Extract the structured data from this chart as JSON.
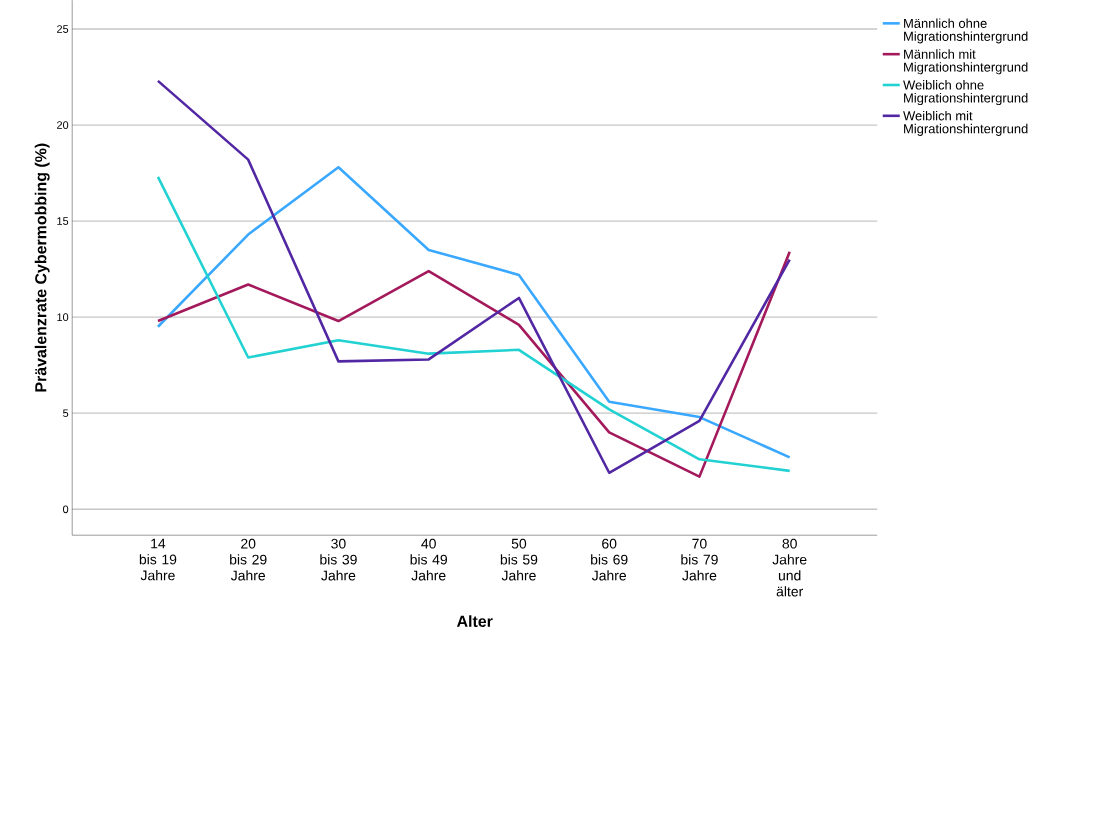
{
  "chart_data": {
    "type": "line",
    "xlabel": "Alter",
    "ylabel": "Prävalenzrate Cybermobbing (%)",
    "categories": [
      "14 bis 19 Jahre",
      "20 bis 29 Jahre",
      "30 bis 39 Jahre",
      "40 bis 49 Jahre",
      "50 bis 59 Jahre",
      "60 bis 69 Jahre",
      "70 bis 79 Jahre",
      "80 Jahre und älter"
    ],
    "series": [
      {
        "name": "Männlich ohne Migrationshintergrund",
        "color": "#3aa8ff",
        "values": [
          9.5,
          14.3,
          17.8,
          13.5,
          12.2,
          5.6,
          4.8,
          2.7
        ]
      },
      {
        "name": "Männlich mit Migrationshintergrund",
        "color": "#a3195b",
        "values": [
          9.8,
          11.7,
          9.8,
          12.4,
          9.6,
          4.0,
          1.7,
          13.4
        ]
      },
      {
        "name": "Weiblich ohne Migrationshintergrund",
        "color": "#22d1d1",
        "values": [
          17.3,
          7.9,
          8.8,
          8.1,
          8.3,
          5.2,
          2.6,
          2.0
        ]
      },
      {
        "name": "Weiblich mit Migrationshintergrund",
        "color": "#5227a3",
        "values": [
          22.3,
          18.2,
          7.7,
          7.8,
          11.0,
          1.9,
          4.6,
          13.0
        ]
      }
    ],
    "ylim": [
      -1.35,
      26.5
    ],
    "yticks": [
      0,
      5,
      10,
      15,
      20,
      25
    ],
    "grid": "y",
    "legend": "top right",
    "marker": "none",
    "line_style": "solid"
  }
}
